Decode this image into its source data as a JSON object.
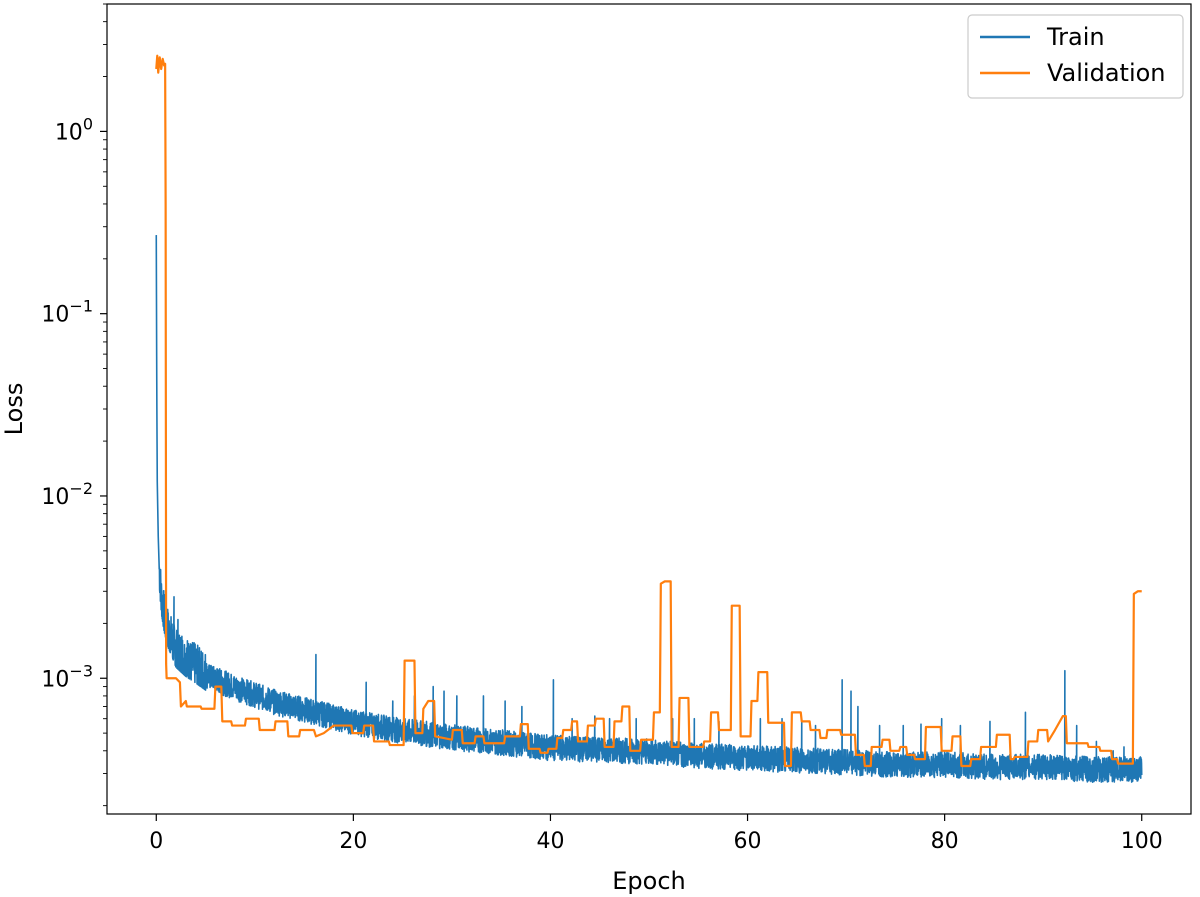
{
  "chart_data": {
    "type": "line",
    "xlabel": "Epoch",
    "ylabel": "Loss",
    "yscale": "log",
    "xlim": [
      -5,
      105
    ],
    "ylim": [
      0.00018,
      5.0
    ],
    "grid": false,
    "legend_position": "top-right",
    "xticks": [
      {
        "value": 0,
        "label": "0"
      },
      {
        "value": 20,
        "label": "20"
      },
      {
        "value": 40,
        "label": "40"
      },
      {
        "value": 60,
        "label": "60"
      },
      {
        "value": 80,
        "label": "80"
      },
      {
        "value": 100,
        "label": "100"
      }
    ],
    "yticks": [
      {
        "value": 1,
        "base": "10",
        "exp": "0"
      },
      {
        "value": 0.1,
        "base": "10",
        "exp": "−1"
      },
      {
        "value": 0.01,
        "base": "10",
        "exp": "−2"
      },
      {
        "value": 0.001,
        "base": "10",
        "exp": "−3"
      }
    ],
    "series": [
      {
        "name": "Train",
        "color": "#1f77b4",
        "points": [
          [
            0,
            0.27
          ],
          [
            0.05,
            0.04
          ],
          [
            0.1,
            0.012
          ],
          [
            0.2,
            0.006
          ],
          [
            0.3,
            0.004
          ],
          [
            0.5,
            0.0028
          ],
          [
            0.8,
            0.0022
          ],
          [
            1.2,
            0.0018
          ],
          [
            1.6,
            0.0016
          ],
          [
            2,
            0.0014
          ],
          [
            3,
            0.00125
          ],
          [
            4,
            0.00115
          ],
          [
            5,
            0.00105
          ],
          [
            6,
            0.001
          ],
          [
            8,
            0.0009
          ],
          [
            10,
            0.00082
          ],
          [
            12,
            0.00075
          ],
          [
            15,
            0.00068
          ],
          [
            18,
            0.00062
          ],
          [
            20,
            0.00058
          ],
          [
            25,
            0.00052
          ],
          [
            30,
            0.00048
          ],
          [
            35,
            0.00045
          ],
          [
            40,
            0.00042
          ],
          [
            45,
            0.00041
          ],
          [
            50,
            0.0004
          ],
          [
            55,
            0.00038
          ],
          [
            60,
            0.00037
          ],
          [
            65,
            0.00036
          ],
          [
            70,
            0.00035
          ],
          [
            75,
            0.00034
          ],
          [
            80,
            0.00034
          ],
          [
            85,
            0.00033
          ],
          [
            90,
            0.00033
          ],
          [
            95,
            0.00032
          ],
          [
            100,
            0.00032
          ]
        ],
        "spikes": [
          [
            1.8,
            0.0028
          ],
          [
            2.2,
            0.0021
          ],
          [
            2.6,
            0.0017
          ],
          [
            3.4,
            0.0015
          ],
          [
            4.3,
            0.0014
          ],
          [
            5.1,
            0.0012
          ],
          [
            6.6,
            0.0011
          ],
          [
            8.4,
            0.00095
          ],
          [
            10.8,
            0.00085
          ],
          [
            16.2,
            0.00135
          ],
          [
            21.3,
            0.00095
          ],
          [
            24,
            0.00075
          ],
          [
            26.2,
            0.0008
          ],
          [
            28.1,
            0.0009
          ],
          [
            29.2,
            0.00085
          ],
          [
            30.5,
            0.0008
          ],
          [
            33.2,
            0.0008
          ],
          [
            35.4,
            0.00075
          ],
          [
            37.1,
            0.0007
          ],
          [
            40.3,
            0.00098
          ],
          [
            42.2,
            0.0006
          ],
          [
            44.5,
            0.00062
          ],
          [
            46,
            0.0006
          ],
          [
            48.7,
            0.0006
          ],
          [
            52.4,
            0.0006
          ],
          [
            54.6,
            0.0006
          ],
          [
            57.1,
            0.00058
          ],
          [
            61.3,
            0.0006
          ],
          [
            63.5,
            0.0006
          ],
          [
            65.5,
            0.00058
          ],
          [
            66.9,
            0.00055
          ],
          [
            69.6,
            0.00098
          ],
          [
            70.5,
            0.00085
          ],
          [
            71.2,
            0.0007
          ],
          [
            73.4,
            0.00055
          ],
          [
            75.8,
            0.00055
          ],
          [
            77.6,
            0.00056
          ],
          [
            79.7,
            0.0006
          ],
          [
            81.6,
            0.00055
          ],
          [
            84.6,
            0.00058
          ],
          [
            88.2,
            0.00065
          ],
          [
            92.2,
            0.0011
          ],
          [
            93.4,
            0.00055
          ],
          [
            95.4,
            0.00045
          ],
          [
            97.1,
            0.0004
          ],
          [
            98.2,
            0.00042
          ]
        ]
      },
      {
        "name": "Validation",
        "color": "#ff7f0e",
        "points": [
          [
            0,
            2.2
          ],
          [
            0.1,
            2.6
          ],
          [
            0.2,
            2.1
          ],
          [
            0.35,
            2.55
          ],
          [
            0.5,
            2.2
          ],
          [
            0.65,
            2.5
          ],
          [
            0.8,
            2.3
          ],
          [
            0.9,
            2.35
          ],
          [
            0.95,
            0.4
          ],
          [
            1.0,
            0.0012
          ],
          [
            1.05,
            0.001
          ],
          [
            2.0,
            0.001
          ],
          [
            2.4,
            0.00095
          ],
          [
            2.5,
            0.0007
          ],
          [
            3.0,
            0.00075
          ],
          [
            3.1,
            0.0007
          ],
          [
            4.5,
            0.0007
          ],
          [
            4.6,
            0.00068
          ],
          [
            5.9,
            0.00068
          ],
          [
            6.0,
            0.0009
          ],
          [
            6.6,
            0.0009
          ],
          [
            6.7,
            0.00058
          ],
          [
            7.6,
            0.00058
          ],
          [
            7.7,
            0.00055
          ],
          [
            9.0,
            0.00055
          ],
          [
            9.1,
            0.0006
          ],
          [
            10.4,
            0.0006
          ],
          [
            10.5,
            0.00052
          ],
          [
            12.0,
            0.00052
          ],
          [
            12.1,
            0.00058
          ],
          [
            13.3,
            0.00058
          ],
          [
            13.4,
            0.00048
          ],
          [
            14.5,
            0.00048
          ],
          [
            14.6,
            0.00052
          ],
          [
            16.0,
            0.00052
          ],
          [
            16.2,
            0.00048
          ],
          [
            17.0,
            0.0005
          ],
          [
            18.0,
            0.00055
          ],
          [
            19.8,
            0.00055
          ],
          [
            19.9,
            0.0005
          ],
          [
            21.0,
            0.0005
          ],
          [
            21.1,
            0.00055
          ],
          [
            22.0,
            0.00055
          ],
          [
            22.1,
            0.00045
          ],
          [
            23.6,
            0.00045
          ],
          [
            23.7,
            0.00043
          ],
          [
            25.1,
            0.00043
          ],
          [
            25.2,
            0.00125
          ],
          [
            26.2,
            0.00125
          ],
          [
            26.3,
            0.0005
          ],
          [
            27.0,
            0.0005
          ],
          [
            27.1,
            0.00068
          ],
          [
            27.6,
            0.00075
          ],
          [
            28.2,
            0.00075
          ],
          [
            28.3,
            0.00048
          ],
          [
            30.0,
            0.00046
          ],
          [
            30.1,
            0.00052
          ],
          [
            31.0,
            0.00052
          ],
          [
            31.1,
            0.00044
          ],
          [
            32.3,
            0.00044
          ],
          [
            32.4,
            0.00048
          ],
          [
            33.2,
            0.00048
          ],
          [
            33.3,
            0.00044
          ],
          [
            35.3,
            0.00044
          ],
          [
            35.4,
            0.00048
          ],
          [
            36.9,
            0.00048
          ],
          [
            37.0,
            0.00056
          ],
          [
            37.7,
            0.00056
          ],
          [
            37.8,
            0.00041
          ],
          [
            38.9,
            0.00041
          ],
          [
            39.0,
            0.00039
          ],
          [
            39.7,
            0.00039
          ],
          [
            39.8,
            0.00041
          ],
          [
            40.6,
            0.00041
          ],
          [
            40.7,
            0.00047
          ],
          [
            41.2,
            0.00047
          ],
          [
            41.3,
            0.00052
          ],
          [
            42.1,
            0.00052
          ],
          [
            42.2,
            0.00058
          ],
          [
            42.7,
            0.00058
          ],
          [
            42.8,
            0.00045
          ],
          [
            43.7,
            0.00045
          ],
          [
            43.8,
            0.00055
          ],
          [
            44.5,
            0.00055
          ],
          [
            44.6,
            0.0006
          ],
          [
            45.4,
            0.0006
          ],
          [
            45.5,
            0.00042
          ],
          [
            46.4,
            0.00042
          ],
          [
            46.5,
            0.00058
          ],
          [
            47.2,
            0.00058
          ],
          [
            47.3,
            0.0007
          ],
          [
            48.0,
            0.0007
          ],
          [
            48.1,
            0.0004
          ],
          [
            49.1,
            0.0004
          ],
          [
            49.2,
            0.00046
          ],
          [
            50.4,
            0.00046
          ],
          [
            50.5,
            0.00065
          ],
          [
            51.1,
            0.00065
          ],
          [
            51.2,
            0.0033
          ],
          [
            51.6,
            0.0034
          ],
          [
            52.2,
            0.0034
          ],
          [
            52.3,
            0.00042
          ],
          [
            53.0,
            0.00042
          ],
          [
            53.1,
            0.00078
          ],
          [
            54.0,
            0.00078
          ],
          [
            54.1,
            0.00042
          ],
          [
            55.5,
            0.00042
          ],
          [
            55.6,
            0.00045
          ],
          [
            56.2,
            0.00045
          ],
          [
            56.3,
            0.00065
          ],
          [
            57.0,
            0.00065
          ],
          [
            57.1,
            0.00052
          ],
          [
            58.3,
            0.00052
          ],
          [
            58.4,
            0.0025
          ],
          [
            59.2,
            0.0025
          ],
          [
            59.3,
            0.00048
          ],
          [
            60.3,
            0.00048
          ],
          [
            60.4,
            0.00075
          ],
          [
            61.0,
            0.00075
          ],
          [
            61.1,
            0.00108
          ],
          [
            62.0,
            0.00108
          ],
          [
            62.1,
            0.00057
          ],
          [
            63.7,
            0.00057
          ],
          [
            63.8,
            0.00033
          ],
          [
            64.4,
            0.00033
          ],
          [
            64.5,
            0.00065
          ],
          [
            65.4,
            0.00065
          ],
          [
            65.5,
            0.00058
          ],
          [
            66.3,
            0.00058
          ],
          [
            66.4,
            0.00052
          ],
          [
            67.3,
            0.00052
          ],
          [
            67.4,
            0.00047
          ],
          [
            68.0,
            0.00047
          ],
          [
            68.1,
            0.00052
          ],
          [
            69.4,
            0.00052
          ],
          [
            69.5,
            0.00049
          ],
          [
            70.9,
            0.00049
          ],
          [
            71.0,
            0.00038
          ],
          [
            71.8,
            0.00038
          ],
          [
            71.9,
            0.00033
          ],
          [
            72.5,
            0.00033
          ],
          [
            72.6,
            0.00042
          ],
          [
            73.6,
            0.00042
          ],
          [
            73.7,
            0.00046
          ],
          [
            74.4,
            0.00046
          ],
          [
            74.5,
            0.0004
          ],
          [
            75.4,
            0.0004
          ],
          [
            75.5,
            0.00042
          ],
          [
            76.1,
            0.00042
          ],
          [
            76.2,
            0.00038
          ],
          [
            76.9,
            0.00038
          ],
          [
            77.0,
            0.00036
          ],
          [
            78.0,
            0.00036
          ],
          [
            78.1,
            0.00054
          ],
          [
            79.6,
            0.00054
          ],
          [
            79.7,
            0.0004
          ],
          [
            80.7,
            0.0004
          ],
          [
            80.8,
            0.00048
          ],
          [
            81.6,
            0.00048
          ],
          [
            81.7,
            0.00033
          ],
          [
            82.6,
            0.00033
          ],
          [
            82.7,
            0.00036
          ],
          [
            83.6,
            0.00036
          ],
          [
            83.7,
            0.00042
          ],
          [
            85.2,
            0.00042
          ],
          [
            85.3,
            0.00049
          ],
          [
            86.6,
            0.00049
          ],
          [
            86.7,
            0.00036
          ],
          [
            87.0,
            0.00036
          ],
          [
            87.1,
            0.00037
          ],
          [
            88.4,
            0.00037
          ],
          [
            88.5,
            0.00045
          ],
          [
            89.4,
            0.00045
          ],
          [
            89.5,
            0.00052
          ],
          [
            90.4,
            0.00052
          ],
          [
            90.5,
            0.00045
          ],
          [
            91.2,
            0.00052
          ],
          [
            92.0,
            0.00062
          ],
          [
            92.3,
            0.00062
          ],
          [
            92.4,
            0.00044
          ],
          [
            94.5,
            0.00044
          ],
          [
            94.6,
            0.00042
          ],
          [
            95.7,
            0.00042
          ],
          [
            95.8,
            0.0004
          ],
          [
            96.9,
            0.0004
          ],
          [
            97.0,
            0.00036
          ],
          [
            97.5,
            0.00036
          ],
          [
            97.6,
            0.00034
          ],
          [
            99.1,
            0.00034
          ],
          [
            99.2,
            0.0029
          ],
          [
            99.6,
            0.003
          ],
          [
            100,
            0.003
          ]
        ]
      }
    ]
  }
}
